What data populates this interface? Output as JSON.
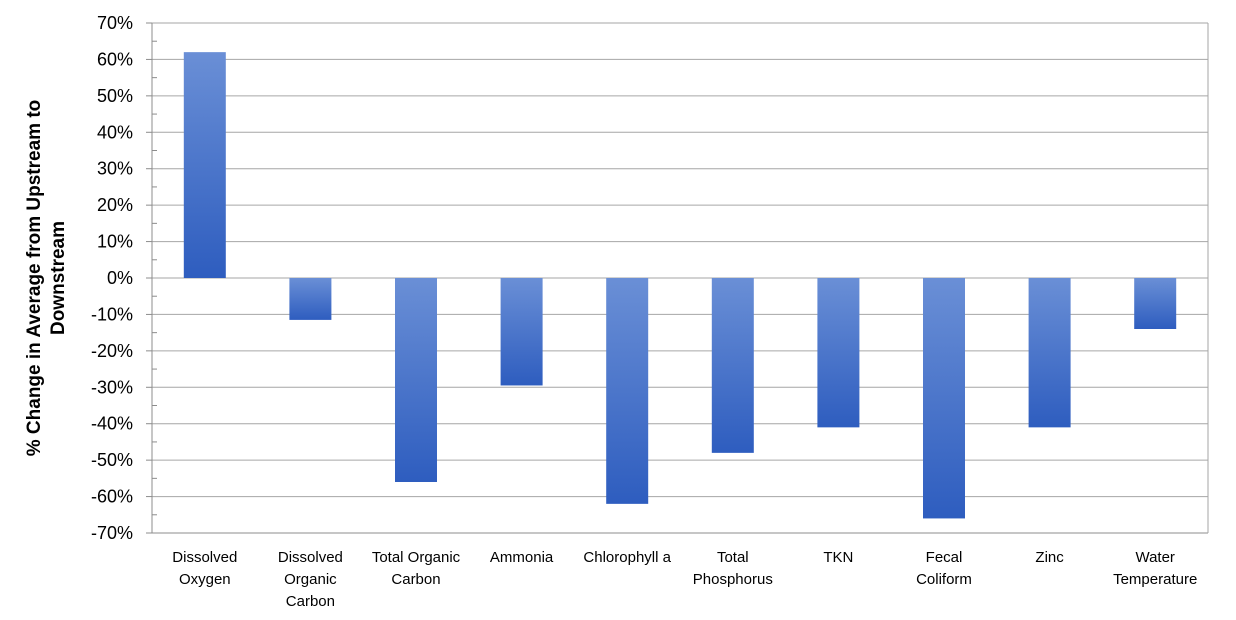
{
  "chart_data": {
    "type": "bar",
    "title": "",
    "xlabel": "",
    "ylabel_lines": [
      "% Change in Average from Upstream to",
      "Downstream"
    ],
    "categories": [
      [
        "Dissolved",
        "Oxygen"
      ],
      [
        "Dissolved",
        "Organic",
        "Carbon"
      ],
      [
        "Total Organic",
        "Carbon"
      ],
      [
        "Ammonia"
      ],
      [
        "Chlorophyll a"
      ],
      [
        "Total",
        "Phosphorus"
      ],
      [
        "TKN"
      ],
      [
        "Fecal",
        "Coliform"
      ],
      [
        "Zinc"
      ],
      [
        "Water",
        "Temperature"
      ]
    ],
    "values": [
      62,
      -11.5,
      -56,
      -29.5,
      -62,
      -48,
      -41,
      -66,
      -41,
      -14
    ],
    "ylim": [
      -70,
      70
    ],
    "ytick_step": 10,
    "ytick_labels": [
      "70%",
      "60%",
      "50%",
      "40%",
      "30%",
      "20%",
      "10%",
      "0%",
      "-10%",
      "-20%",
      "-30%",
      "-40%",
      "-50%",
      "-60%",
      "-70%"
    ],
    "grid": true,
    "legend": "none",
    "colors": {
      "bar_light": "#6a8fd6",
      "bar_dark": "#2e5dbf",
      "grid": "#a6a6a6",
      "axis": "#8c8c8c"
    }
  }
}
